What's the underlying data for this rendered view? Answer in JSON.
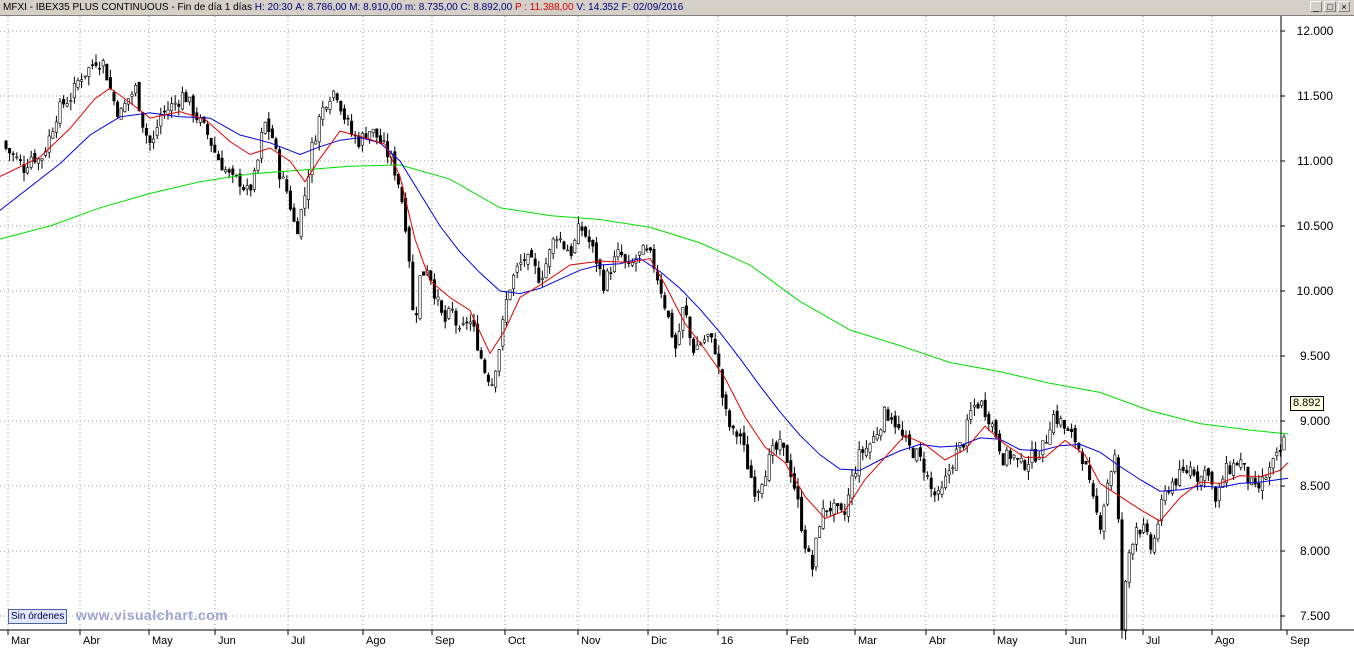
{
  "header": {
    "title": "MFXI - IBEX35 PLUS CONTINUOUS - Fin de día 1 días",
    "hour": "H: 20:30",
    "open": "A: 8.786,00",
    "high": "M: 8.910,00",
    "low": "m: 8.735,00",
    "close": "C: 8.892,00",
    "prev": "P : 11.388,00",
    "volume": "V: 14.352",
    "date": "F: 02/09/2016"
  },
  "window_buttons": {
    "minimize": "_",
    "restore": "□",
    "close": "×"
  },
  "last_price_label": "8.892",
  "sin_ordenes_label": "Sin órdenes",
  "watermark": "www.visualchart.com",
  "chart_data": {
    "type": "candlestick",
    "ylim": [
      7150,
      12200
    ],
    "y_ticks": [
      7500,
      8000,
      8500,
      9000,
      9500,
      10000,
      10500,
      11000,
      11500,
      12000
    ],
    "y_tick_labels": [
      "7.500",
      "8.000",
      "8.500",
      "9.000",
      "9.500",
      "10.000",
      "10.500",
      "11.000",
      "11.500",
      "12.000"
    ],
    "x_tick_labels": [
      "Mar",
      "Abr",
      "May",
      "Jun",
      "Jul",
      "Ago",
      "Sep",
      "Oct",
      "Nov",
      "Dic",
      "16",
      "Feb",
      "Mar",
      "Abr",
      "May",
      "Jun",
      "Jul",
      "Ago",
      "Sep"
    ],
    "grid": true,
    "colors": {
      "up": "#ffffff",
      "down": "#000000",
      "wick": "#000000",
      "ma_short": "#e00000",
      "ma_mid": "#0000e0",
      "ma_long": "#00dd00",
      "grid": "#999999"
    },
    "close_path": [
      [
        0,
        11150
      ],
      [
        8,
        11080
      ],
      [
        16,
        11020
      ],
      [
        24,
        10950
      ],
      [
        32,
        11050
      ],
      [
        40,
        11000
      ],
      [
        48,
        11150
      ],
      [
        56,
        11350
      ],
      [
        64,
        11450
      ],
      [
        72,
        11500
      ],
      [
        80,
        11650
      ],
      [
        88,
        11700
      ],
      [
        96,
        11780
      ],
      [
        104,
        11750
      ],
      [
        112,
        11500
      ],
      [
        120,
        11350
      ],
      [
        128,
        11480
      ],
      [
        136,
        11560
      ],
      [
        144,
        11250
      ],
      [
        152,
        11100
      ],
      [
        160,
        11350
      ],
      [
        168,
        11400
      ],
      [
        176,
        11450
      ],
      [
        184,
        11520
      ],
      [
        192,
        11400
      ],
      [
        200,
        11300
      ],
      [
        208,
        11200
      ],
      [
        216,
        11050
      ],
      [
        224,
        10950
      ],
      [
        232,
        10850
      ],
      [
        240,
        10850
      ],
      [
        248,
        10750
      ],
      [
        256,
        10900
      ],
      [
        264,
        11300
      ],
      [
        272,
        11200
      ],
      [
        280,
        10900
      ],
      [
        288,
        10750
      ],
      [
        296,
        10450
      ],
      [
        304,
        10700
      ],
      [
        312,
        11100
      ],
      [
        320,
        11350
      ],
      [
        328,
        11500
      ],
      [
        336,
        11550
      ],
      [
        344,
        11350
      ],
      [
        352,
        11200
      ],
      [
        360,
        11150
      ],
      [
        368,
        11250
      ],
      [
        376,
        11200
      ],
      [
        384,
        11100
      ],
      [
        392,
        11000
      ],
      [
        400,
        10800
      ],
      [
        408,
        10400
      ],
      [
        414,
        9700
      ],
      [
        420,
        10100
      ],
      [
        428,
        10200
      ],
      [
        436,
        9950
      ],
      [
        444,
        9750
      ],
      [
        452,
        9850
      ],
      [
        460,
        9650
      ],
      [
        468,
        9800
      ],
      [
        476,
        9650
      ],
      [
        484,
        9400
      ],
      [
        492,
        9300
      ],
      [
        500,
        9600
      ],
      [
        508,
        10000
      ],
      [
        516,
        10150
      ],
      [
        524,
        10250
      ],
      [
        532,
        10200
      ],
      [
        540,
        10100
      ],
      [
        548,
        10250
      ],
      [
        556,
        10450
      ],
      [
        564,
        10350
      ],
      [
        572,
        10300
      ],
      [
        580,
        10500
      ],
      [
        588,
        10400
      ],
      [
        596,
        10250
      ],
      [
        604,
        10050
      ],
      [
        612,
        10200
      ],
      [
        620,
        10300
      ],
      [
        628,
        10150
      ],
      [
        636,
        10250
      ],
      [
        644,
        10300
      ],
      [
        652,
        10250
      ],
      [
        660,
        10050
      ],
      [
        668,
        9800
      ],
      [
        676,
        9550
      ],
      [
        684,
        9900
      ],
      [
        692,
        9550
      ],
      [
        700,
        9600
      ],
      [
        708,
        9650
      ],
      [
        716,
        9550
      ],
      [
        724,
        9100
      ],
      [
        732,
        8900
      ],
      [
        740,
        8900
      ],
      [
        748,
        8650
      ],
      [
        756,
        8450
      ],
      [
        764,
        8600
      ],
      [
        772,
        8750
      ],
      [
        780,
        8800
      ],
      [
        788,
        8700
      ],
      [
        796,
        8450
      ],
      [
        804,
        8100
      ],
      [
        812,
        7850
      ],
      [
        820,
        8250
      ],
      [
        828,
        8350
      ],
      [
        836,
        8300
      ],
      [
        844,
        8250
      ],
      [
        852,
        8550
      ],
      [
        860,
        8750
      ],
      [
        868,
        8800
      ],
      [
        876,
        8900
      ],
      [
        884,
        9050
      ],
      [
        892,
        9050
      ],
      [
        900,
        8900
      ],
      [
        908,
        8800
      ],
      [
        916,
        8750
      ],
      [
        924,
        8650
      ],
      [
        932,
        8450
      ],
      [
        940,
        8400
      ],
      [
        948,
        8600
      ],
      [
        956,
        8750
      ],
      [
        964,
        8850
      ],
      [
        972,
        9100
      ],
      [
        980,
        9150
      ],
      [
        988,
        9050
      ],
      [
        996,
        8900
      ],
      [
        1004,
        8700
      ],
      [
        1012,
        8750
      ],
      [
        1020,
        8650
      ],
      [
        1028,
        8700
      ],
      [
        1036,
        8750
      ],
      [
        1044,
        8800
      ],
      [
        1052,
        9050
      ],
      [
        1060,
        9000
      ],
      [
        1068,
        8900
      ],
      [
        1076,
        8850
      ],
      [
        1084,
        8700
      ],
      [
        1092,
        8400
      ],
      [
        1100,
        8200
      ],
      [
        1108,
        8550
      ],
      [
        1116,
        8750
      ],
      [
        1122,
        7400
      ],
      [
        1128,
        7950
      ],
      [
        1136,
        8200
      ],
      [
        1144,
        8150
      ],
      [
        1152,
        8000
      ],
      [
        1160,
        8300
      ],
      [
        1168,
        8500
      ],
      [
        1176,
        8550
      ],
      [
        1184,
        8600
      ],
      [
        1192,
        8650
      ],
      [
        1200,
        8550
      ],
      [
        1208,
        8650
      ],
      [
        1216,
        8350
      ],
      [
        1224,
        8600
      ],
      [
        1232,
        8650
      ],
      [
        1240,
        8700
      ],
      [
        1248,
        8550
      ],
      [
        1256,
        8450
      ],
      [
        1264,
        8550
      ],
      [
        1272,
        8650
      ],
      [
        1280,
        8750
      ],
      [
        1286,
        8892
      ]
    ],
    "ma_short": [
      [
        0,
        10880
      ],
      [
        40,
        11030
      ],
      [
        70,
        11250
      ],
      [
        95,
        11480
      ],
      [
        110,
        11560
      ],
      [
        130,
        11450
      ],
      [
        150,
        11330
      ],
      [
        180,
        11380
      ],
      [
        205,
        11320
      ],
      [
        230,
        11150
      ],
      [
        250,
        11050
      ],
      [
        270,
        11100
      ],
      [
        290,
        11000
      ],
      [
        305,
        10840
      ],
      [
        320,
        11020
      ],
      [
        340,
        11230
      ],
      [
        360,
        11190
      ],
      [
        385,
        11130
      ],
      [
        400,
        10880
      ],
      [
        415,
        10400
      ],
      [
        430,
        10080
      ],
      [
        450,
        9950
      ],
      [
        470,
        9850
      ],
      [
        490,
        9520
      ],
      [
        505,
        9700
      ],
      [
        520,
        9950
      ],
      [
        545,
        10070
      ],
      [
        570,
        10200
      ],
      [
        600,
        10230
      ],
      [
        630,
        10220
      ],
      [
        650,
        10250
      ],
      [
        665,
        10050
      ],
      [
        685,
        9750
      ],
      [
        705,
        9550
      ],
      [
        725,
        9330
      ],
      [
        745,
        9030
      ],
      [
        765,
        8800
      ],
      [
        785,
        8680
      ],
      [
        805,
        8420
      ],
      [
        825,
        8250
      ],
      [
        845,
        8310
      ],
      [
        865,
        8550
      ],
      [
        885,
        8720
      ],
      [
        905,
        8890
      ],
      [
        925,
        8820
      ],
      [
        945,
        8700
      ],
      [
        965,
        8780
      ],
      [
        985,
        8960
      ],
      [
        1005,
        8820
      ],
      [
        1025,
        8720
      ],
      [
        1045,
        8720
      ],
      [
        1065,
        8850
      ],
      [
        1085,
        8740
      ],
      [
        1100,
        8520
      ],
      [
        1120,
        8420
      ],
      [
        1140,
        8320
      ],
      [
        1160,
        8230
      ],
      [
        1180,
        8410
      ],
      [
        1200,
        8530
      ],
      [
        1220,
        8520
      ],
      [
        1240,
        8580
      ],
      [
        1260,
        8570
      ],
      [
        1280,
        8620
      ],
      [
        1288,
        8680
      ]
    ],
    "ma_mid": [
      [
        0,
        10620
      ],
      [
        30,
        10800
      ],
      [
        60,
        10980
      ],
      [
        90,
        11200
      ],
      [
        120,
        11340
      ],
      [
        150,
        11370
      ],
      [
        180,
        11340
      ],
      [
        210,
        11330
      ],
      [
        240,
        11200
      ],
      [
        270,
        11140
      ],
      [
        300,
        11050
      ],
      [
        320,
        11110
      ],
      [
        340,
        11160
      ],
      [
        360,
        11180
      ],
      [
        380,
        11140
      ],
      [
        400,
        11000
      ],
      [
        420,
        10750
      ],
      [
        440,
        10500
      ],
      [
        460,
        10300
      ],
      [
        480,
        10140
      ],
      [
        500,
        10000
      ],
      [
        520,
        9980
      ],
      [
        540,
        10020
      ],
      [
        560,
        10090
      ],
      [
        580,
        10160
      ],
      [
        600,
        10200
      ],
      [
        620,
        10210
      ],
      [
        640,
        10250
      ],
      [
        660,
        10150
      ],
      [
        680,
        10020
      ],
      [
        700,
        9860
      ],
      [
        720,
        9680
      ],
      [
        740,
        9480
      ],
      [
        760,
        9270
      ],
      [
        780,
        9070
      ],
      [
        800,
        8890
      ],
      [
        820,
        8740
      ],
      [
        840,
        8630
      ],
      [
        860,
        8620
      ],
      [
        880,
        8700
      ],
      [
        900,
        8770
      ],
      [
        920,
        8820
      ],
      [
        940,
        8800
      ],
      [
        960,
        8810
      ],
      [
        980,
        8870
      ],
      [
        1000,
        8860
      ],
      [
        1020,
        8780
      ],
      [
        1040,
        8770
      ],
      [
        1060,
        8810
      ],
      [
        1080,
        8820
      ],
      [
        1100,
        8760
      ],
      [
        1120,
        8650
      ],
      [
        1140,
        8550
      ],
      [
        1160,
        8460
      ],
      [
        1180,
        8470
      ],
      [
        1200,
        8500
      ],
      [
        1220,
        8490
      ],
      [
        1240,
        8520
      ],
      [
        1260,
        8530
      ],
      [
        1288,
        8560
      ]
    ],
    "ma_long": [
      [
        0,
        10400
      ],
      [
        50,
        10500
      ],
      [
        100,
        10640
      ],
      [
        150,
        10750
      ],
      [
        200,
        10840
      ],
      [
        250,
        10900
      ],
      [
        300,
        10930
      ],
      [
        350,
        10960
      ],
      [
        400,
        10970
      ],
      [
        450,
        10860
      ],
      [
        500,
        10640
      ],
      [
        550,
        10580
      ],
      [
        600,
        10550
      ],
      [
        650,
        10490
      ],
      [
        700,
        10370
      ],
      [
        750,
        10200
      ],
      [
        800,
        9920
      ],
      [
        850,
        9700
      ],
      [
        900,
        9580
      ],
      [
        950,
        9450
      ],
      [
        1000,
        9380
      ],
      [
        1050,
        9290
      ],
      [
        1100,
        9220
      ],
      [
        1150,
        9080
      ],
      [
        1200,
        8980
      ],
      [
        1250,
        8930
      ],
      [
        1288,
        8900
      ]
    ]
  }
}
